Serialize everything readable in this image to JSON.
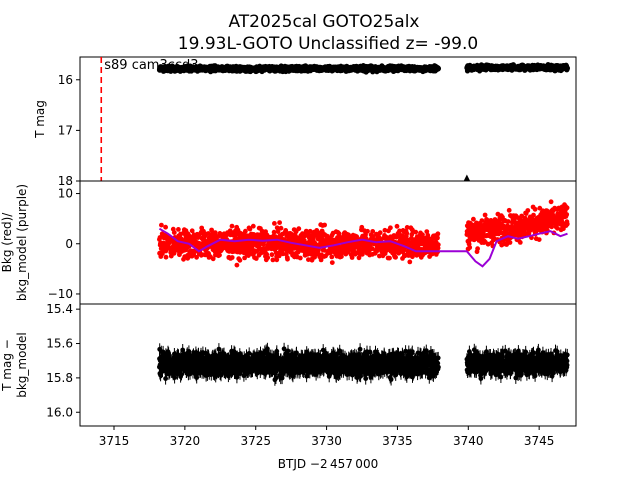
{
  "title_line1": "AT2025cal  GOTO25alx",
  "title_line2": "19.93L-GOTO Unclassified z= -99.0",
  "xlabel": "BTJD −2 457 000",
  "colors": {
    "points": "#000000",
    "bkg": "#ff0000",
    "bkg_model": "#9b00d6",
    "marker_line": "#ff0000"
  },
  "chart_data": [
    {
      "type": "scatter",
      "panel": "top",
      "ylabel": "T mag",
      "y_inverted": true,
      "xlim": [
        3712.6,
        3747.6
      ],
      "ylim": [
        18.0,
        15.55
      ],
      "y_ticks": [
        16,
        17,
        18
      ],
      "x_ticks": [
        3715,
        3720,
        3725,
        3730,
        3735,
        3740,
        3745
      ],
      "segments": [
        {
          "x_start": 3718.2,
          "x_end": 3737.9,
          "y_center": 15.78,
          "y_spread": 0.1
        },
        {
          "x_start": 3739.9,
          "x_end": 3747.0,
          "y_center": 15.76,
          "y_spread": 0.1
        }
      ],
      "vline": {
        "x": 3714.1,
        "label": "s89 cam3ccd3",
        "style": "dashed"
      },
      "triangle_marker": {
        "x": 3739.9,
        "y": 17.95
      }
    },
    {
      "type": "scatter",
      "panel": "middle",
      "ylabel": "Bkg (red)/\nbkg_model (purple)",
      "xlim": [
        3712.6,
        3747.6
      ],
      "ylim": [
        -12,
        12.5
      ],
      "y_ticks": [
        -10,
        0,
        10
      ],
      "series": [
        {
          "name": "Bkg (red)",
          "segments": [
            {
              "x_start": 3718.2,
              "x_end": 3737.9,
              "y_center": 0,
              "y_spread": 8
            },
            {
              "x_start": 3739.9,
              "x_end": 3747.0,
              "y_center": 2,
              "y_spread": 8
            }
          ]
        },
        {
          "name": "bkg_model (purple)",
          "points": [
            [
              3718.2,
              3
            ],
            [
              3718.8,
              2
            ],
            [
              3719.5,
              0.5
            ],
            [
              3720.3,
              0
            ],
            [
              3721.0,
              -1.5
            ],
            [
              3721.6,
              -0.5
            ],
            [
              3722.5,
              0.8
            ],
            [
              3723.5,
              0.5
            ],
            [
              3724.5,
              0.8
            ],
            [
              3725.5,
              0.6
            ],
            [
              3726.5,
              0.8
            ],
            [
              3727.5,
              0.2
            ],
            [
              3728.5,
              -0.3
            ],
            [
              3729.5,
              -0.8
            ],
            [
              3730.5,
              -0.3
            ],
            [
              3731.5,
              0.3
            ],
            [
              3732.5,
              0.8
            ],
            [
              3733.5,
              0.3
            ],
            [
              3734.5,
              0.5
            ],
            [
              3735.5,
              -0.5
            ],
            [
              3736.3,
              -1.5
            ],
            [
              3737.0,
              -1.5
            ],
            [
              3737.9,
              -1.5
            ],
            [
              3739.9,
              -1.5
            ],
            [
              3740.5,
              -3.5
            ],
            [
              3741.0,
              -4.5
            ],
            [
              3741.5,
              -3.0
            ],
            [
              3742.0,
              0.5
            ],
            [
              3742.8,
              1.5
            ],
            [
              3743.5,
              1.0
            ],
            [
              3744.3,
              1.5
            ],
            [
              3745.0,
              2.0
            ],
            [
              3745.8,
              2.5
            ],
            [
              3746.5,
              1.5
            ],
            [
              3747.0,
              2.0
            ]
          ]
        }
      ]
    },
    {
      "type": "scatter",
      "panel": "bottom",
      "ylabel": "T mag −\nbkg_model",
      "y_inverted": true,
      "xlim": [
        3712.6,
        3747.6
      ],
      "ylim": [
        16.08,
        15.37
      ],
      "y_ticks": [
        15.4,
        15.6,
        15.8,
        16.0
      ],
      "segments": [
        {
          "x_start": 3718.2,
          "x_end": 3737.9,
          "y_center": 15.72,
          "y_spread": 0.12
        },
        {
          "x_start": 3739.9,
          "x_end": 3747.0,
          "y_center": 15.72,
          "y_spread": 0.12
        }
      ]
    }
  ]
}
